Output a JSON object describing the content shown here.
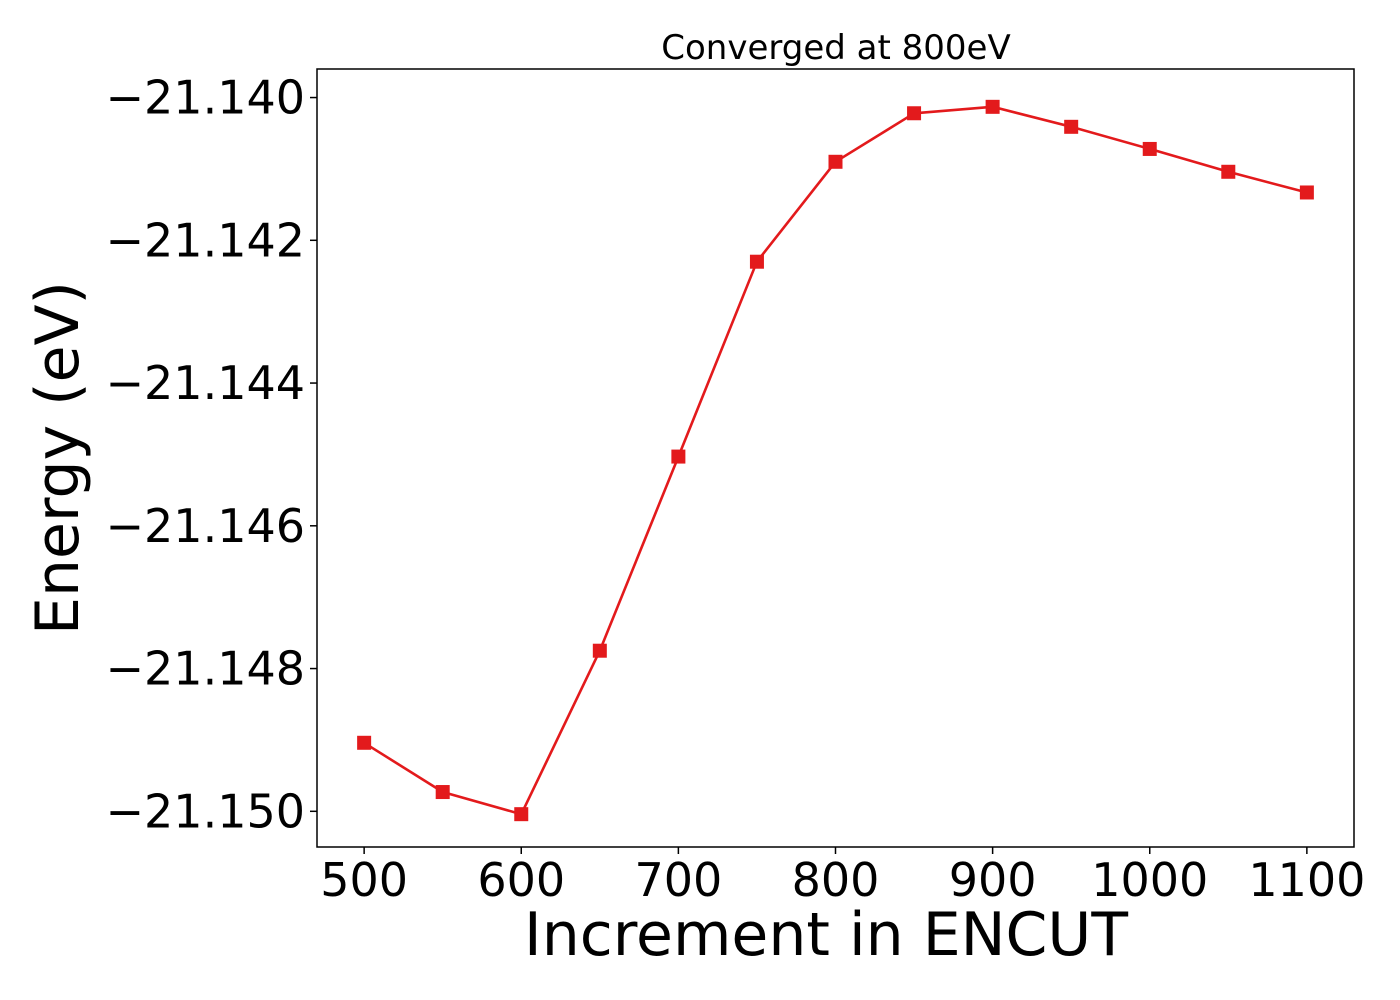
{
  "chart_data": {
    "type": "line",
    "title": "Converged at 800eV",
    "xlabel": "Increment in ENCUT",
    "ylabel": "Energy (eV)",
    "xlim": [
      470,
      1130
    ],
    "ylim": [
      -21.1505,
      -21.1396
    ],
    "xticks": [
      500,
      600,
      700,
      800,
      900,
      1000,
      1100
    ],
    "yticks": [
      -21.14,
      -21.142,
      -21.144,
      -21.146,
      -21.148,
      -21.15
    ],
    "ytick_labels": [
      "−21.140",
      "−21.142",
      "−21.144",
      "−21.146",
      "−21.148",
      "−21.150"
    ],
    "grid": false,
    "marker": "square",
    "colors": {
      "series": "#e31a1c",
      "axes": "#000000"
    },
    "series": [
      {
        "x": [
          500,
          550,
          600,
          650,
          700,
          750,
          800,
          850,
          900,
          950,
          1000,
          1050,
          1100
        ],
        "y": [
          -21.14904,
          -21.14973,
          -21.15004,
          -21.14775,
          -21.14503,
          -21.1423,
          -21.1409,
          -21.14022,
          -21.14013,
          -21.14041,
          -21.14072,
          -21.14104,
          -21.14133
        ]
      }
    ]
  }
}
